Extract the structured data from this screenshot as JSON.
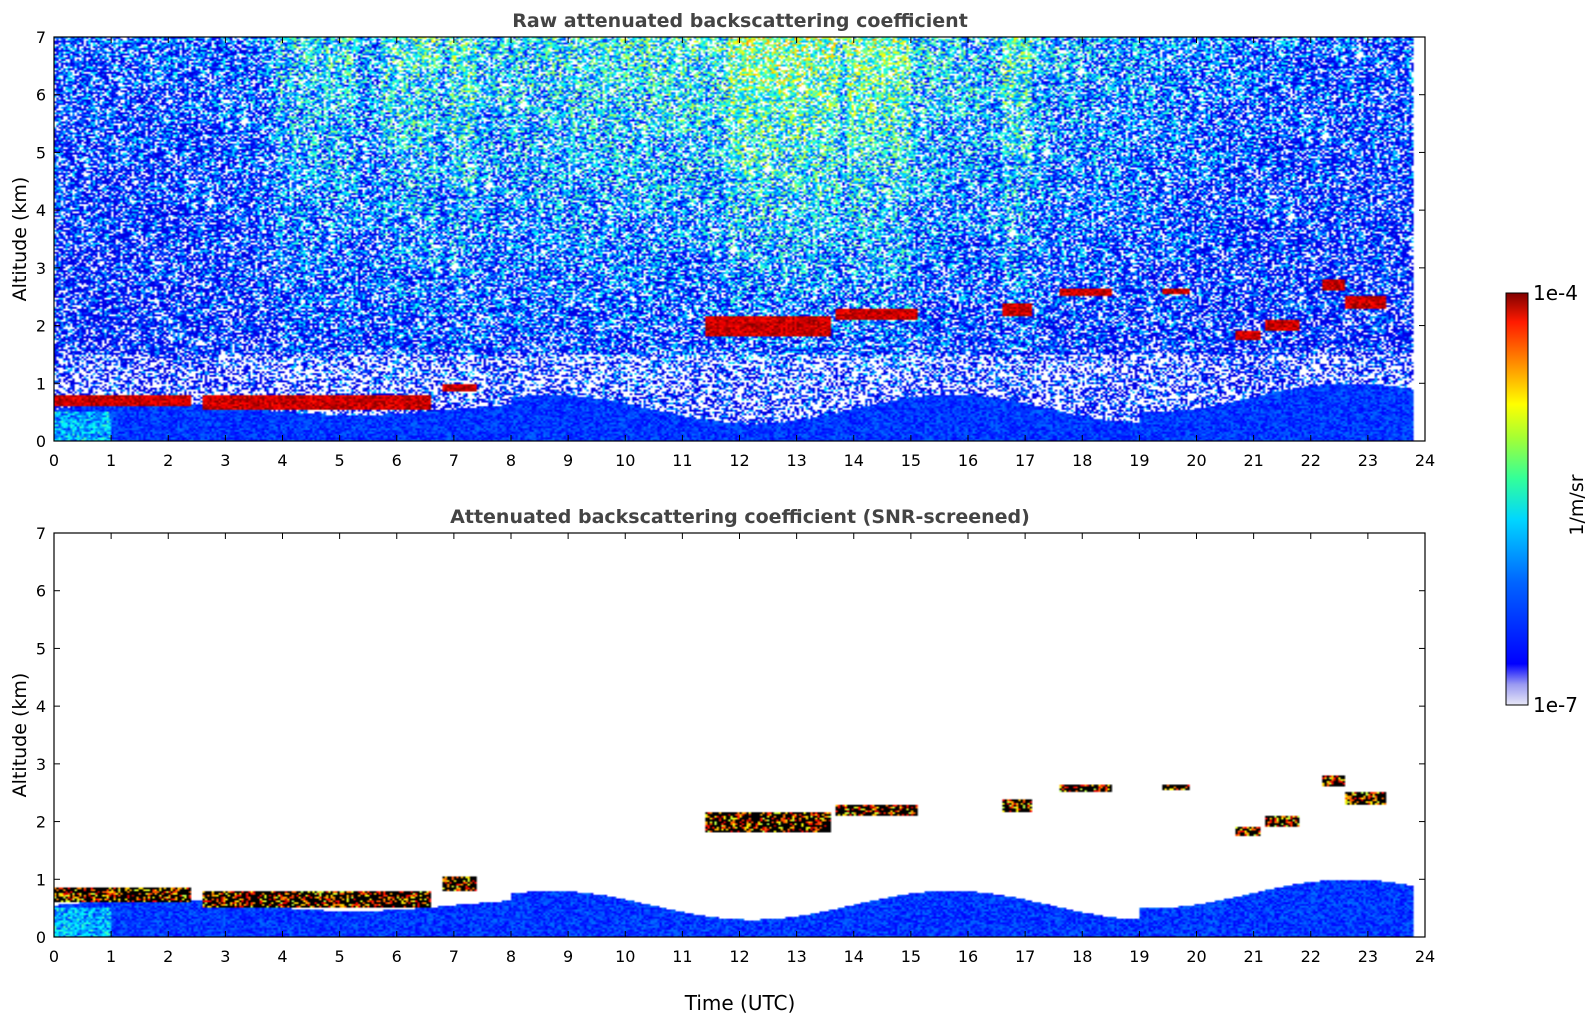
{
  "figure": {
    "colorbar": {
      "label": "1/m/sr",
      "max_label": "1e-4",
      "min_label": "1e-7",
      "scale": "log",
      "colormap": "jet",
      "range": [
        1e-07,
        0.0001
      ]
    },
    "xlabel": "Time (UTC)"
  },
  "chart_data": [
    {
      "type": "heatmap",
      "title": "Raw attenuated backscattering coefficient",
      "ylabel": "Altitude (km)",
      "xlabel": "",
      "xlim": [
        0,
        24
      ],
      "ylim": [
        0,
        7
      ],
      "xticks": [
        "0",
        "1",
        "2",
        "3",
        "4",
        "5",
        "6",
        "7",
        "8",
        "9",
        "10",
        "11",
        "12",
        "13",
        "14",
        "15",
        "16",
        "17",
        "18",
        "19",
        "20",
        "21",
        "22",
        "23",
        "24"
      ],
      "yticks": [
        "0",
        "1",
        "2",
        "3",
        "4",
        "5",
        "6",
        "7"
      ],
      "grid": false,
      "data_extent_hours": [
        0,
        23.8
      ],
      "features": [
        {
          "name": "boundary layer cloud",
          "time": [
            0,
            2.4
          ],
          "altitude_km": [
            0.6,
            0.8
          ]
        },
        {
          "name": "boundary layer cloud",
          "time": [
            2.6,
            6.6
          ],
          "altitude_km": [
            0.55,
            0.8
          ]
        },
        {
          "name": "cloud",
          "time": [
            6.8,
            7.4
          ],
          "altitude_km": [
            0.85,
            1.0
          ]
        },
        {
          "name": "cloud",
          "time": [
            11.4,
            13.6
          ],
          "altitude_km": [
            1.8,
            2.15
          ]
        },
        {
          "name": "cloud",
          "time": [
            13.7,
            15.1
          ],
          "altitude_km": [
            2.1,
            2.3
          ]
        },
        {
          "name": "cloud",
          "time": [
            16.6,
            17.1
          ],
          "altitude_km": [
            2.15,
            2.4
          ]
        },
        {
          "name": "cloud",
          "time": [
            17.6,
            18.5
          ],
          "altitude_km": [
            2.5,
            2.65
          ]
        },
        {
          "name": "cloud",
          "time": [
            19.4,
            19.9
          ],
          "altitude_km": [
            2.55,
            2.65
          ]
        },
        {
          "name": "cloud",
          "time": [
            20.7,
            21.1
          ],
          "altitude_km": [
            1.75,
            1.9
          ]
        },
        {
          "name": "cloud",
          "time": [
            21.2,
            21.8
          ],
          "altitude_km": [
            1.9,
            2.1
          ]
        },
        {
          "name": "cloud",
          "time": [
            22.2,
            22.6
          ],
          "altitude_km": [
            2.6,
            2.8
          ]
        },
        {
          "name": "cloud",
          "time": [
            22.6,
            23.3
          ],
          "altitude_km": [
            2.3,
            2.5
          ]
        }
      ],
      "noisy_daytime_bands_hours": [
        [
          3.9,
          5.3
        ],
        [
          5.7,
          6.7
        ],
        [
          6.9,
          7.4
        ],
        [
          11.8,
          13.7
        ],
        [
          13.9,
          15.0
        ],
        [
          16.6,
          17.1
        ]
      ]
    },
    {
      "type": "heatmap",
      "title": "Attenuated backscattering coefficient (SNR-screened)",
      "ylabel": "Altitude (km)",
      "xlabel": "Time (UTC)",
      "xlim": [
        0,
        24
      ],
      "ylim": [
        0,
        7
      ],
      "xticks": [
        "0",
        "1",
        "2",
        "3",
        "4",
        "5",
        "6",
        "7",
        "8",
        "9",
        "10",
        "11",
        "12",
        "13",
        "14",
        "15",
        "16",
        "17",
        "18",
        "19",
        "20",
        "21",
        "22",
        "23",
        "24"
      ],
      "yticks": [
        "0",
        "1",
        "2",
        "3",
        "4",
        "5",
        "6",
        "7"
      ],
      "grid": false,
      "data_extent_hours": [
        0,
        23.8
      ],
      "features": [
        {
          "name": "boundary layer cloud",
          "time": [
            0,
            2.4
          ],
          "altitude_km": [
            0.6,
            0.85
          ]
        },
        {
          "name": "boundary layer cloud",
          "time": [
            2.6,
            6.6
          ],
          "altitude_km": [
            0.5,
            0.8
          ]
        },
        {
          "name": "cloud",
          "time": [
            6.8,
            7.4
          ],
          "altitude_km": [
            0.8,
            1.05
          ]
        },
        {
          "name": "cloud",
          "time": [
            11.4,
            13.6
          ],
          "altitude_km": [
            1.8,
            2.15
          ]
        },
        {
          "name": "cloud",
          "time": [
            13.7,
            15.1
          ],
          "altitude_km": [
            2.1,
            2.3
          ]
        },
        {
          "name": "cloud",
          "time": [
            16.6,
            17.1
          ],
          "altitude_km": [
            2.15,
            2.4
          ]
        },
        {
          "name": "cloud",
          "time": [
            17.6,
            18.5
          ],
          "altitude_km": [
            2.5,
            2.65
          ]
        },
        {
          "name": "cloud",
          "time": [
            19.4,
            19.9
          ],
          "altitude_km": [
            2.55,
            2.65
          ]
        },
        {
          "name": "cloud",
          "time": [
            20.7,
            21.1
          ],
          "altitude_km": [
            1.75,
            1.9
          ]
        },
        {
          "name": "cloud",
          "time": [
            21.2,
            21.8
          ],
          "altitude_km": [
            1.9,
            2.1
          ]
        },
        {
          "name": "cloud",
          "time": [
            22.2,
            22.6
          ],
          "altitude_km": [
            2.6,
            2.8
          ]
        },
        {
          "name": "cloud",
          "time": [
            22.6,
            23.3
          ],
          "altitude_km": [
            2.3,
            2.5
          ]
        }
      ]
    }
  ]
}
